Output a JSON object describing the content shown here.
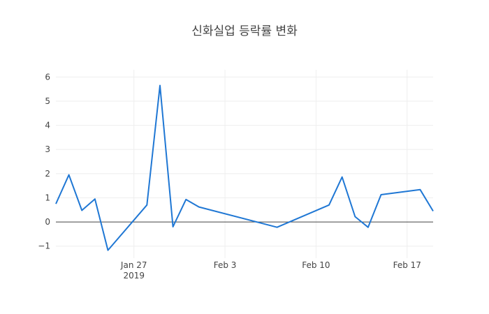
{
  "chart_data": {
    "type": "line",
    "title": "신화실업 등락률 변화",
    "xlabel": "",
    "ylabel": "",
    "x_axis_type": "date",
    "xlim": [
      "2019-01-21",
      "2019-02-19"
    ],
    "ylim": [
      -1.5,
      6.3
    ],
    "y_ticks": [
      -1,
      0,
      1,
      2,
      3,
      4,
      5,
      6
    ],
    "y_tick_labels": [
      "−1",
      "0",
      "1",
      "2",
      "3",
      "4",
      "5",
      "6"
    ],
    "x_ticks": [
      "2019-01-27",
      "2019-02-03",
      "2019-02-10",
      "2019-02-17"
    ],
    "x_tick_labels": [
      "Jan 27",
      "Feb 3",
      "Feb 10",
      "Feb 17"
    ],
    "x_tick_sublabel": "2019",
    "grid": true,
    "zero_line": true,
    "line_color": "#1f77d4",
    "series": [
      {
        "x": [
          "2019-01-21",
          "2019-01-22",
          "2019-01-23",
          "2019-01-24",
          "2019-01-25",
          "2019-01-28",
          "2019-01-29",
          "2019-01-30",
          "2019-01-31",
          "2019-02-01",
          "2019-02-07",
          "2019-02-11",
          "2019-02-12",
          "2019-02-13",
          "2019-02-14",
          "2019-02-15",
          "2019-02-18",
          "2019-02-19"
        ],
        "y": [
          0.75,
          1.95,
          0.48,
          0.95,
          -1.17,
          0.7,
          5.65,
          -0.2,
          0.93,
          0.62,
          -0.22,
          0.7,
          1.86,
          0.22,
          -0.22,
          1.13,
          1.34,
          0.45
        ]
      }
    ]
  }
}
